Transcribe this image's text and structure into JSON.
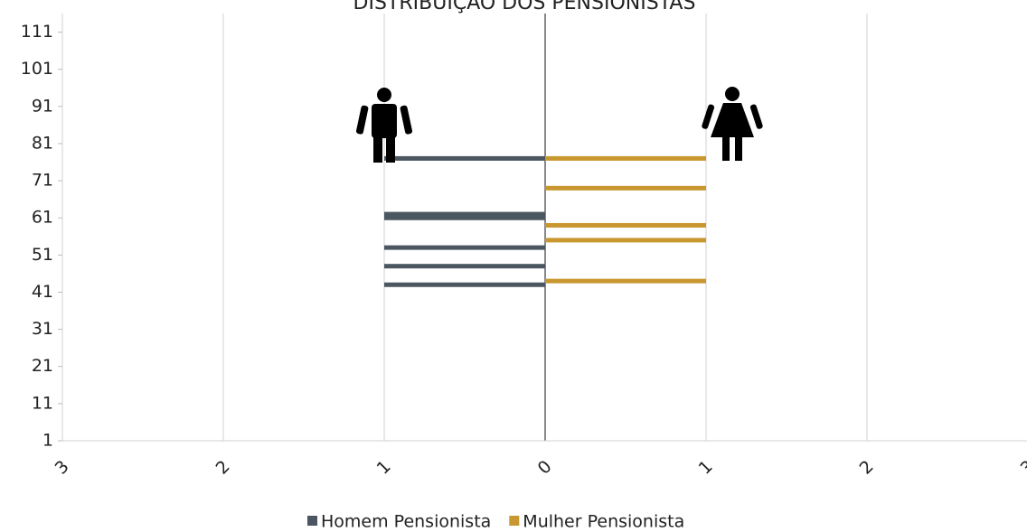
{
  "chart_data": {
    "type": "pyramid",
    "title": "DISTRIBUIÇÃO DOS PENSIONISTAS",
    "xlim": [
      -3,
      3
    ],
    "xticks": [
      {
        "value": -3,
        "label": "3"
      },
      {
        "value": -2,
        "label": "2"
      },
      {
        "value": -1,
        "label": "1"
      },
      0,
      1,
      2,
      3
    ],
    "ylim": [
      1,
      116
    ],
    "yticks": [
      1,
      11,
      21,
      31,
      41,
      51,
      61,
      71,
      81,
      91,
      101,
      111
    ],
    "grid": true,
    "legend": "bottom",
    "series": [
      {
        "name": "Homem Pensionista",
        "color": "#4b5661",
        "y": [
          77,
          62,
          61,
          53,
          48,
          43
        ],
        "values": [
          -1,
          -1,
          -1,
          -1,
          -1,
          -1
        ]
      },
      {
        "name": "Mulher Pensionista",
        "color": "#c9972f",
        "y": [
          77,
          69,
          59,
          55,
          44
        ],
        "values": [
          1,
          1,
          1,
          1,
          1
        ]
      }
    ]
  }
}
